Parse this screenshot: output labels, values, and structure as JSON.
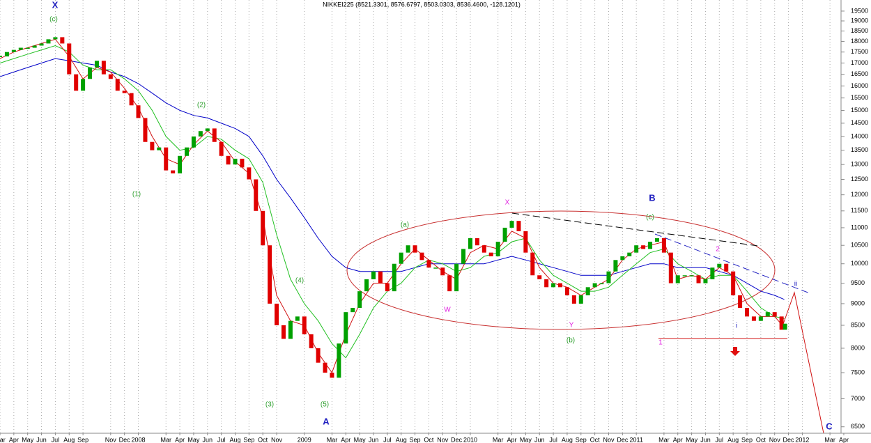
{
  "chart_data": {
    "type": "candlestick",
    "title": "NIKKEI225 (8521.3301, 8576.6797, 8503.0303, 8536.4600, -128.1201)",
    "log_scale": true,
    "grid": "x",
    "up_color": "#00a000",
    "down_color": "#e00000",
    "x": [
      2,
      2.5,
      3,
      3.5,
      4,
      4.5,
      5,
      5.5,
      6,
      6.5,
      7,
      7.5,
      8,
      8.5,
      9,
      9.5,
      10,
      10.5,
      11,
      11.5,
      12,
      12.5,
      13,
      13.5,
      14,
      14.5,
      15,
      15.5,
      16,
      16.5,
      17,
      17.5,
      18,
      18.5,
      19,
      19.5,
      20,
      20.5,
      21,
      21.5,
      22,
      22.5,
      23,
      23.5,
      24,
      24.5,
      25,
      25.5,
      26,
      26.5,
      27,
      27.5,
      28,
      28.5,
      29,
      29.5,
      30,
      30.5,
      31,
      31.5,
      32,
      32.5,
      33,
      33.5,
      34,
      34.5,
      35,
      35.5,
      36,
      36.5,
      37,
      37.5,
      38,
      38.5,
      39,
      39.5,
      40,
      40.5,
      41,
      41.5,
      42,
      42.5,
      43,
      43.5,
      44,
      44.5,
      45,
      45.5,
      46,
      46.5,
      47,
      47.5,
      48,
      48.5,
      49,
      49.5,
      50,
      50.5,
      51,
      51.5,
      52,
      52.5,
      53,
      53.5,
      54,
      54.5,
      55,
      55.5,
      56,
      56.5,
      57,
      57.5,
      58,
      58.5,
      58.75
    ],
    "values": [
      17300,
      17500,
      17600,
      17700,
      17700,
      17800,
      17900,
      18100,
      18200,
      17900,
      16500,
      15800,
      16300,
      16800,
      17100,
      16500,
      16300,
      15800,
      15700,
      15200,
      14700,
      13800,
      13500,
      13600,
      12800,
      12700,
      13300,
      13600,
      14000,
      14200,
      14300,
      13800,
      13300,
      13000,
      13200,
      12900,
      12500,
      11500,
      10500,
      9000,
      8500,
      8200,
      8600,
      8700,
      8300,
      8000,
      7700,
      7500,
      7400,
      8100,
      8800,
      8900,
      9300,
      9600,
      9800,
      9500,
      9300,
      10000,
      10300,
      10500,
      10300,
      10100,
      9900,
      9900,
      9700,
      9300,
      10000,
      10400,
      10700,
      10500,
      10300,
      10200,
      10600,
      11000,
      11200,
      10900,
      10300,
      9700,
      9600,
      9400,
      9500,
      9400,
      9200,
      9000,
      9200,
      9400,
      9500,
      9500,
      9800,
      10100,
      10200,
      10300,
      10500,
      10400,
      10600,
      10700,
      10300,
      9500,
      9700,
      9700,
      9700,
      9500,
      9600,
      9900,
      10000,
      9800,
      9200,
      8900,
      8700,
      8600,
      8700,
      8800,
      8700,
      8400,
      8536
    ],
    "moving_averages": [
      {
        "color": "#0000c8",
        "x": [
          2,
          3,
          4,
          5,
          6,
          7,
          8,
          9,
          10,
          11,
          12,
          13,
          14,
          15,
          16,
          17,
          18,
          19,
          20,
          21,
          22,
          23,
          24,
          25,
          26,
          27,
          28,
          29,
          30,
          31,
          32,
          33,
          34,
          35,
          36,
          37,
          38,
          39,
          40,
          41,
          42,
          43,
          44,
          45,
          46,
          47,
          48,
          49,
          50,
          51,
          52,
          53,
          54,
          55,
          56,
          57,
          58,
          58.7
        ],
        "values": [
          16400,
          16600,
          16800,
          17000,
          17200,
          17100,
          17000,
          16900,
          16600,
          16400,
          16100,
          15700,
          15300,
          15000,
          14800,
          14700,
          14500,
          14300,
          14000,
          13300,
          12500,
          11900,
          11300,
          10700,
          10200,
          9900,
          9800,
          9800,
          9800,
          9800,
          9900,
          10000,
          10000,
          10000,
          10000,
          10000,
          10100,
          10200,
          10100,
          10000,
          9900,
          9800,
          9700,
          9700,
          9700,
          9800,
          9900,
          10000,
          10000,
          9900,
          9900,
          9900,
          9800,
          9700,
          9500,
          9300,
          9200,
          9100
        ]
      },
      {
        "color": "#22c022",
        "x": [
          2,
          3,
          4,
          5,
          6,
          7,
          8,
          9,
          10,
          11,
          12,
          13,
          14,
          15,
          16,
          17,
          18,
          19,
          20,
          21,
          22,
          23,
          24,
          25,
          26,
          27,
          28,
          29,
          30,
          31,
          32,
          33,
          34,
          35,
          36,
          37,
          38,
          39,
          40,
          41,
          42,
          43,
          44,
          45,
          46,
          47,
          48,
          49,
          50,
          51,
          52,
          53,
          54,
          55,
          56,
          57,
          58,
          58.7
        ],
        "values": [
          17000,
          17200,
          17400,
          17600,
          17800,
          17500,
          16900,
          16700,
          16700,
          16300,
          15800,
          15000,
          14000,
          13500,
          13600,
          14000,
          13900,
          13500,
          13200,
          12400,
          10800,
          9600,
          9000,
          8600,
          8100,
          7800,
          8300,
          8900,
          9300,
          9500,
          9900,
          10100,
          10000,
          9800,
          9900,
          10200,
          10300,
          10600,
          10700,
          10100,
          9700,
          9500,
          9300,
          9300,
          9400,
          9700,
          10000,
          10300,
          10400,
          10000,
          9800,
          9600,
          9700,
          9700,
          9300,
          8900,
          8700,
          8650
        ]
      },
      {
        "color": "#d01010",
        "x": [
          2,
          3,
          4,
          5,
          6,
          7,
          8,
          9,
          10,
          11,
          12,
          13,
          14,
          15,
          16,
          17,
          18,
          19,
          20,
          21,
          22,
          23,
          24,
          25,
          26,
          27,
          28,
          29,
          30,
          31,
          32,
          33,
          34,
          35,
          36,
          37,
          38,
          39,
          40,
          41,
          42,
          43,
          44,
          45,
          46,
          47,
          48,
          49,
          50,
          51,
          52,
          53,
          54,
          55,
          56,
          57,
          58,
          58.7
        ],
        "values": [
          17200,
          17500,
          17700,
          17900,
          18100,
          17300,
          16300,
          16800,
          16600,
          15900,
          15100,
          14000,
          13200,
          13000,
          13700,
          14200,
          13800,
          13100,
          12700,
          11300,
          9200,
          8600,
          8500,
          7900,
          7500,
          8300,
          9000,
          9500,
          9500,
          10000,
          10400,
          10100,
          9800,
          9600,
          10300,
          10500,
          10400,
          10900,
          10700,
          9900,
          9500,
          9400,
          9200,
          9400,
          9600,
          10100,
          10400,
          10500,
          10600,
          9600,
          9700,
          9600,
          9900,
          9700,
          9000,
          8700,
          8700,
          8450
        ]
      }
    ],
    "xlim": [
      2,
      62.8
    ],
    "ylim": [
      6390,
      20080
    ],
    "xticks": [
      {
        "value": 2,
        "label": "Mar"
      },
      {
        "value": 3,
        "label": "Apr"
      },
      {
        "value": 4,
        "label": "May"
      },
      {
        "value": 5,
        "label": "Jun"
      },
      {
        "value": 6,
        "label": "Jul"
      },
      {
        "value": 7,
        "label": "Aug"
      },
      {
        "value": 8,
        "label": "Sep"
      },
      {
        "value": 10,
        "label": "Nov"
      },
      {
        "value": 11,
        "label": "Dec"
      },
      {
        "value": 12,
        "label": "2008"
      },
      {
        "value": 14,
        "label": "Mar"
      },
      {
        "value": 15,
        "label": "Apr"
      },
      {
        "value": 16,
        "label": "May"
      },
      {
        "value": 17,
        "label": "Jun"
      },
      {
        "value": 18,
        "label": "Jul"
      },
      {
        "value": 19,
        "label": "Aug"
      },
      {
        "value": 20,
        "label": "Sep"
      },
      {
        "value": 21,
        "label": "Oct"
      },
      {
        "value": 22,
        "label": "Nov"
      },
      {
        "value": 24,
        "label": "2009"
      },
      {
        "value": 26,
        "label": "Mar"
      },
      {
        "value": 27,
        "label": "Apr"
      },
      {
        "value": 28,
        "label": "May"
      },
      {
        "value": 29,
        "label": "Jun"
      },
      {
        "value": 30,
        "label": "Jul"
      },
      {
        "value": 31,
        "label": "Aug"
      },
      {
        "value": 32,
        "label": "Sep"
      },
      {
        "value": 33,
        "label": "Oct"
      },
      {
        "value": 34,
        "label": "Nov"
      },
      {
        "value": 35,
        "label": "Dec"
      },
      {
        "value": 36,
        "label": "2010"
      },
      {
        "value": 38,
        "label": "Mar"
      },
      {
        "value": 39,
        "label": "Apr"
      },
      {
        "value": 40,
        "label": "May"
      },
      {
        "value": 41,
        "label": "Jun"
      },
      {
        "value": 42,
        "label": "Jul"
      },
      {
        "value": 43,
        "label": "Aug"
      },
      {
        "value": 44,
        "label": "Sep"
      },
      {
        "value": 45,
        "label": "Oct"
      },
      {
        "value": 46,
        "label": "Nov"
      },
      {
        "value": 47,
        "label": "Dec"
      },
      {
        "value": 48,
        "label": "2011"
      },
      {
        "value": 50,
        "label": "Mar"
      },
      {
        "value": 51,
        "label": "Apr"
      },
      {
        "value": 52,
        "label": "May"
      },
      {
        "value": 53,
        "label": "Jun"
      },
      {
        "value": 54,
        "label": "Jul"
      },
      {
        "value": 55,
        "label": "Aug"
      },
      {
        "value": 56,
        "label": "Sep"
      },
      {
        "value": 57,
        "label": "Oct"
      },
      {
        "value": 58,
        "label": "Nov"
      },
      {
        "value": 59,
        "label": "Dec"
      },
      {
        "value": 60,
        "label": "2012"
      },
      {
        "value": 62,
        "label": "Mar"
      },
      {
        "value": 63,
        "label": "Apr"
      }
    ],
    "yticks": [
      6500,
      7000,
      7500,
      8000,
      8500,
      9000,
      9500,
      10000,
      10500,
      11000,
      11500,
      12000,
      12500,
      13000,
      13500,
      14000,
      14500,
      15000,
      15500,
      16000,
      16500,
      17000,
      17500,
      18000,
      18500,
      19000,
      19500
    ],
    "annotations": [
      {
        "text": "X",
        "color": "#2020c0"
      },
      {
        "text": "(c)",
        "color": "#30a030"
      },
      {
        "text": "(2)",
        "color": "#30a030"
      },
      {
        "text": "(1)",
        "color": "#30a030"
      },
      {
        "text": "(4)",
        "color": "#30a030"
      },
      {
        "text": "(3)",
        "color": "#30a030"
      },
      {
        "text": "(5)",
        "color": "#30a030"
      },
      {
        "text": "A",
        "color": "#2020c0"
      },
      {
        "text": "(a)",
        "color": "#30a030"
      },
      {
        "text": "W",
        "color": "#e020e0"
      },
      {
        "text": "X",
        "color": "#e020e0"
      },
      {
        "text": "Y",
        "color": "#e020e0"
      },
      {
        "text": "(b)",
        "color": "#30a030"
      },
      {
        "text": "B",
        "color": "#2020c0"
      },
      {
        "text": "(c)",
        "color": "#30a030"
      },
      {
        "text": "2",
        "color": "#e020e0"
      },
      {
        "text": "1",
        "color": "#e020e0"
      },
      {
        "text": "i",
        "color": "#2020c0"
      },
      {
        "text": "ii",
        "color": "#2020c0"
      },
      {
        "text": "C",
        "color": "#2020c0"
      }
    ]
  }
}
